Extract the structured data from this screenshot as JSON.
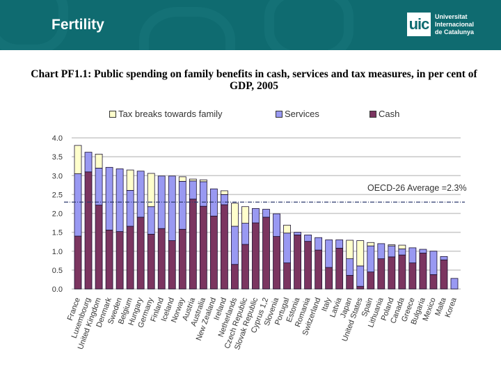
{
  "header": {
    "title": "Fertility",
    "logo": {
      "mark": "uic",
      "lines": [
        "Universitat",
        "Internacional",
        "de Catalunya"
      ]
    },
    "watermark": "Universitat Internacional"
  },
  "chart_data": {
    "type": "bar",
    "stacked": true,
    "title": "Chart PF1.1: Public spending on family benefits in cash, services and tax measures, in per cent of GDP, 2005",
    "xlabel": "",
    "ylabel": "",
    "ylim": [
      0,
      4
    ],
    "yticks": [
      "0.0",
      "0.5",
      "1.0",
      "1.5",
      "2.0",
      "2.5",
      "3.0",
      "3.5",
      "4.0"
    ],
    "grid": true,
    "legend_placement": "top",
    "categories": [
      "France",
      "Luxembourg",
      "United Kingdom",
      "Denmark",
      "Sweden",
      "Belgium",
      "Hungary",
      "Germany",
      "Finland",
      "Iceland",
      "Norway",
      "Austria",
      "Australia",
      "New Zealand",
      "Ireland",
      "Netherlands",
      "Czech Republic",
      "Slovak Republic",
      "Cyprus 1,2",
      "Slovenia",
      "Portugal",
      "Estonia",
      "Romania",
      "Switzerland",
      "Italy",
      "Latvia",
      "Japan",
      "United States",
      "Spain",
      "Lithuania",
      "Poland",
      "Canada",
      "Greece",
      "Bulgaria",
      "Mexico",
      "Malta",
      "Korea"
    ],
    "series": [
      {
        "name": "Cash",
        "color": "#7b3560",
        "values": [
          1.4,
          3.1,
          2.22,
          1.56,
          1.52,
          1.66,
          1.9,
          1.45,
          1.6,
          1.28,
          1.58,
          2.38,
          2.19,
          1.93,
          2.23,
          0.65,
          1.18,
          1.75,
          1.9,
          1.39,
          0.69,
          1.43,
          1.26,
          1.03,
          0.57,
          1.08,
          0.36,
          0.07,
          0.45,
          0.8,
          0.85,
          0.9,
          0.69,
          0.95,
          0.38,
          0.77,
          0
        ]
      },
      {
        "name": "Services",
        "color": "#9999f2",
        "values": [
          1.65,
          0.52,
          0.98,
          1.66,
          1.66,
          0.95,
          1.22,
          0.73,
          1.39,
          1.71,
          1.27,
          0.48,
          0.65,
          0.72,
          0.27,
          1.01,
          0.56,
          0.38,
          0.21,
          0.6,
          0.79,
          0.07,
          0.17,
          0.33,
          0.73,
          0.22,
          0.44,
          0.54,
          0.69,
          0.4,
          0.29,
          0.16,
          0.4,
          0.1,
          0.62,
          0.09,
          0.28
        ]
      },
      {
        "name": "Tax breaks towards family",
        "color": "#ffffcc",
        "values": [
          0.75,
          0,
          0.37,
          0,
          0,
          0.54,
          0,
          0.88,
          0,
          0,
          0.12,
          0.05,
          0.05,
          0,
          0.1,
          0.61,
          0.44,
          0,
          0,
          0,
          0.21,
          0,
          0,
          0,
          0,
          0,
          0.49,
          0.67,
          0.09,
          0,
          0.03,
          0.1,
          0,
          0,
          0,
          0,
          0
        ]
      }
    ],
    "legend": [
      "Tax breaks towards family",
      "Services",
      "Cash"
    ],
    "reference_line": {
      "value": 2.3,
      "label": "OECD-26 Average =2.3%",
      "color": "#2d3a6e"
    }
  }
}
